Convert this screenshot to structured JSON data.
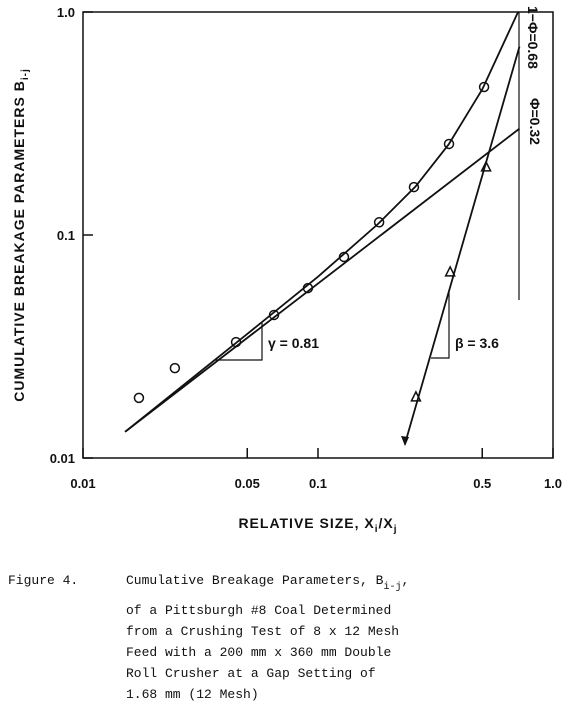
{
  "chart_data": {
    "type": "scatter",
    "x_label": "RELATIVE SIZE, X",
    "x_label_sub1": "i",
    "x_label_mid": "/X",
    "x_label_sub2": "j",
    "y_label": "CUMULATIVE BREAKAGE PARAMETERS B",
    "y_label_sub": "i-j",
    "log_x": true,
    "log_y": true,
    "xlim": [
      0.01,
      1
    ],
    "ylim": [
      0.01,
      1
    ],
    "xticks": [
      {
        "value": 0.01,
        "label": "0.01"
      },
      0.05,
      0.1,
      0.5,
      {
        "value": 1,
        "label": "1.0"
      }
    ],
    "yticks": [
      {
        "value": 0.01,
        "label": "0.01"
      },
      0.1,
      {
        "value": 1,
        "label": "1.0"
      }
    ],
    "color": "#111111",
    "series": [
      {
        "marker": "circle",
        "line": false,
        "x": [
          0.0173,
          0.0246,
          0.0448,
          0.065,
          0.0906,
          0.129,
          0.182,
          0.256,
          0.361,
          0.509
        ],
        "values": [
          0.0186,
          0.0253,
          0.0331,
          0.0438,
          0.0578,
          0.0797,
          0.114,
          0.164,
          0.256,
          0.461
        ]
      },
      {
        "marker": "triangle",
        "line": false,
        "x": [
          0.261,
          0.365,
          0.519
        ],
        "values": [
          0.0188,
          0.0683,
          0.202
        ]
      },
      {
        "marker": "none",
        "line": true,
        "x": [
          0.0151,
          0.05,
          0.1,
          0.18,
          0.26,
          0.36,
          0.5,
          0.71
        ],
        "values": [
          0.0131,
          0.036,
          0.065,
          0.112,
          0.165,
          0.255,
          0.45,
          1.0
        ]
      },
      {
        "marker": "none",
        "line": true,
        "x": [
          0.0151,
          0.72
        ],
        "values": [
          0.0131,
          0.3
        ]
      },
      {
        "marker": "none",
        "line": true,
        "x": [
          0.234,
          0.72
        ],
        "values": [
          0.0115,
          0.7
        ]
      }
    ],
    "annotations": {
      "gamma": "γ = 0.81",
      "beta": "β = 3.6",
      "one_minus_phi": "1−Φ=0.68",
      "phi": "Φ=0.32"
    },
    "caption": {
      "label": "Figure 4.",
      "first": "Cumulative Breakage Parameters, B",
      "first_sub": "i-j",
      "first_end": ",",
      "lines": [
        "of a Pittsburgh #8 Coal Determined",
        "from a Crushing Test of 8 x 12 Mesh",
        "Feed with a 200 mm x 360 mm Double",
        "Roll Crusher at a Gap Setting of",
        "1.68 mm (12 Mesh)"
      ]
    }
  }
}
